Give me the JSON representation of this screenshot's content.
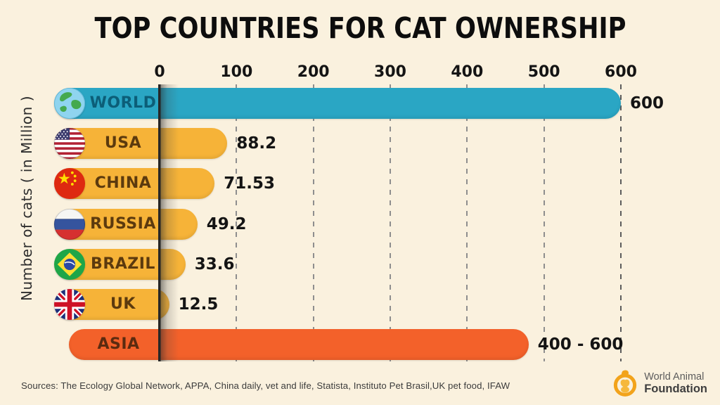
{
  "page": {
    "background_color": "#FAF1DE"
  },
  "chart_data": {
    "type": "bar",
    "orientation": "horizontal",
    "title": "TOP COUNTRIES FOR CAT OWNERSHIP",
    "ylabel": "Number of cats ( in Million )",
    "xlim": [
      0,
      600
    ],
    "xticks": [
      0,
      100,
      200,
      300,
      400,
      500,
      600
    ],
    "grid": "vertical-dashed",
    "legend": "none",
    "bars": [
      {
        "label": "WORLD",
        "value": 600,
        "value_label": "600",
        "bar_value": 600,
        "color": "#2AA6C4",
        "label_color": "#0C5E78",
        "flag": "world"
      },
      {
        "label": "USA",
        "value": 88.2,
        "value_label": "88.2",
        "bar_value": 88.2,
        "color": "#F6B338",
        "label_color": "#5C3A0E",
        "flag": "usa"
      },
      {
        "label": "CHINA",
        "value": 71.53,
        "value_label": "71.53",
        "bar_value": 71.53,
        "color": "#F6B338",
        "label_color": "#5C3A0E",
        "flag": "china"
      },
      {
        "label": "RUSSIA",
        "value": 49.2,
        "value_label": "49.2",
        "bar_value": 49.2,
        "color": "#F6B338",
        "label_color": "#5C3A0E",
        "flag": "russia"
      },
      {
        "label": "BRAZIL",
        "value": 33.6,
        "value_label": "33.6",
        "bar_value": 33.6,
        "color": "#F6B338",
        "label_color": "#5C3A0E",
        "flag": "brazil"
      },
      {
        "label": "UK",
        "value": 12.5,
        "value_label": "12.5",
        "bar_value": 12.5,
        "color": "#F6B338",
        "label_color": "#5C3A0E",
        "flag": "uk"
      },
      {
        "label": "ASIA",
        "value_min": 400,
        "value_max": 600,
        "value_label": "400 - 600",
        "bar_value": 480,
        "color": "#F3612A",
        "label_color": "#5C2B10",
        "flag": null
      }
    ],
    "colors": {
      "tick_text": "#141414",
      "value_text": "#141414",
      "gridline": "#8e8e8e",
      "axis_line": "#262626"
    }
  },
  "footer": {
    "sources": "Sources: The Ecology Global Network,  APPA, China daily, vet and life, Statista, Instituto Pet Brasil,UK pet food, IFAW",
    "logo": {
      "line1": "World Animal",
      "line2": "Foundation",
      "brand_color": "#F2A71B"
    }
  }
}
